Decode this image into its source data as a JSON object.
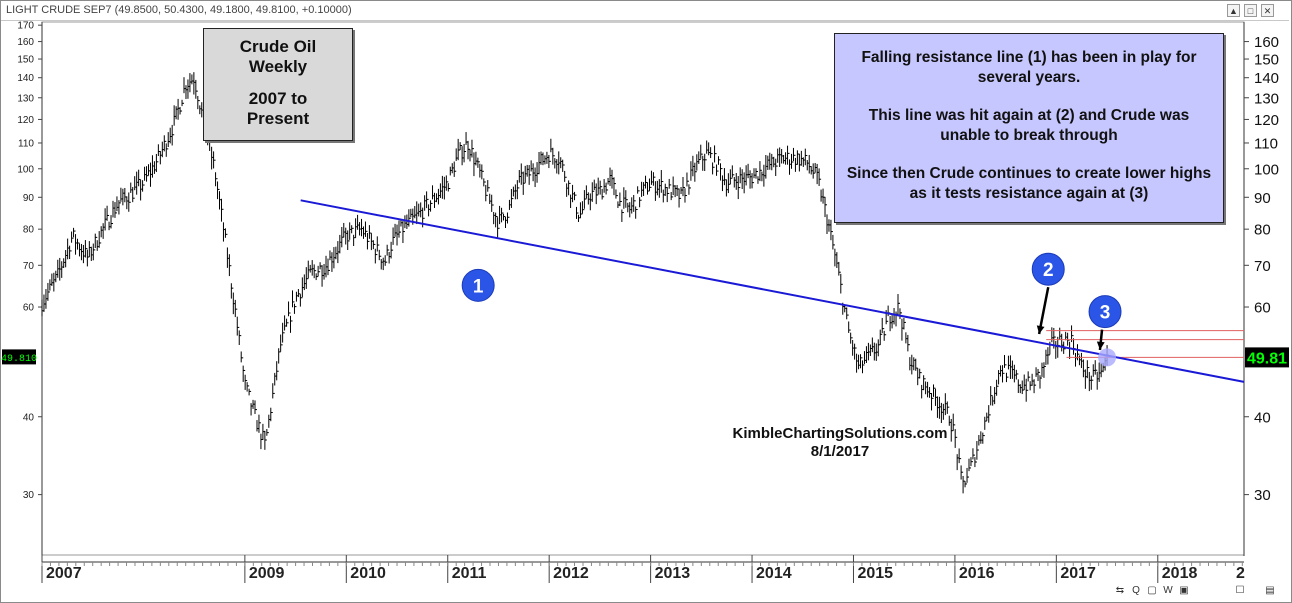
{
  "window": {
    "header": "LIGHT CRUDE SEP7 (49.8500, 50.4300, 49.1800, 49.8100, +0.10000)",
    "buttons": [
      "▲",
      "□",
      "✕"
    ]
  },
  "title_box": {
    "line1": "Crude Oil",
    "line2": "Weekly",
    "line3": "2007 to",
    "line4": "Present"
  },
  "note_box": {
    "p1": "Falling resistance line (1) has been in play for several years.",
    "p2": "This line was hit again at (2) and Crude was unable to break through",
    "p3": "Since then Crude continues to create lower highs as it tests resistance again at (3)"
  },
  "watermark": {
    "site": "KimbleChartingSolutions.com",
    "date": "8/1/2017"
  },
  "markers": [
    {
      "label": "1",
      "date": 2011.3,
      "price": 65
    },
    {
      "label": "2",
      "date": 2016.92,
      "price": 69
    },
    {
      "label": "3",
      "date": 2017.48,
      "price": 59
    }
  ],
  "price_tag": {
    "left": "49.810",
    "right": "49.81"
  },
  "toolbar": {
    "items": [
      "⇆",
      "Q",
      "▢",
      "W",
      "▣",
      "☐",
      "▤"
    ]
  },
  "colors": {
    "resistance_line": "#1a1ad6",
    "marker_fill": "#2a55e6",
    "note_bg": "#c7c7ff",
    "title_bg": "#d9d9d9",
    "horizontal_lines": "#e06060",
    "price_tag_bg": "#000000",
    "price_tag_text": "#00ff00"
  },
  "chart_data": {
    "type": "line",
    "scale": "log",
    "x_ticks": [
      "2007",
      "2009",
      "2010",
      "2011",
      "2012",
      "2013",
      "2014",
      "2015",
      "2016",
      "2017",
      "2018",
      "2"
    ],
    "y_ticks_left": [
      170,
      160,
      150,
      140,
      130,
      120,
      110,
      100,
      90,
      80,
      70,
      60,
      40,
      30
    ],
    "y_ticks_right": [
      160,
      150,
      140,
      130,
      120,
      110,
      100,
      90,
      80,
      70,
      60,
      40,
      30
    ],
    "ylim": [
      24,
      172
    ],
    "xlim": [
      2007.0,
      2018.85
    ],
    "series": [
      {
        "x": [
          2007.0,
          2007.15,
          2007.3,
          2007.45,
          2007.6,
          2007.75,
          2007.9,
          2008.0,
          2008.15,
          2008.3,
          2008.42,
          2008.5,
          2008.6,
          2008.7,
          2008.8,
          2008.9,
          2009.0,
          2009.1,
          2009.2,
          2009.35,
          2009.5,
          2009.65,
          2009.8,
          2009.9,
          2010.0,
          2010.15,
          2010.3,
          2010.38,
          2010.45,
          2010.55,
          2010.7,
          2010.85,
          2011.0,
          2011.1,
          2011.2,
          2011.3,
          2011.4,
          2011.5,
          2011.6,
          2011.7,
          2011.8,
          2011.9,
          2012.0,
          2012.1,
          2012.2,
          2012.3,
          2012.4,
          2012.5,
          2012.6,
          2012.7,
          2012.8,
          2012.9,
          2013.0,
          2013.15,
          2013.3,
          2013.45,
          2013.55,
          2013.65,
          2013.75,
          2013.85,
          2014.0,
          2014.15,
          2014.3,
          2014.45,
          2014.55,
          2014.65,
          2014.75,
          2014.85,
          2014.95,
          2015.05,
          2015.15,
          2015.25,
          2015.35,
          2015.45,
          2015.55,
          2015.65,
          2015.75,
          2015.85,
          2015.95,
          2016.0,
          2016.07,
          2016.15,
          2016.25,
          2016.35,
          2016.45,
          2016.55,
          2016.65,
          2016.75,
          2016.85,
          2016.95,
          2017.05,
          2017.15,
          2017.25,
          2017.35,
          2017.45,
          2017.5
        ],
        "y": [
          61,
          67,
          78,
          72,
          80,
          88,
          92,
          95,
          104,
          118,
          137,
          140,
          118,
          100,
          78,
          60,
          45,
          40,
          36,
          52,
          62,
          68,
          70,
          74,
          78,
          80,
          74,
          71,
          76,
          80,
          84,
          89,
          95,
          105,
          110,
          100,
          90,
          82,
          86,
          95,
          98,
          102,
          106,
          104,
          93,
          84,
          91,
          92,
          96,
          88,
          86,
          91,
          95,
          93,
          90,
          101,
          106,
          102,
          95,
          96,
          97,
          101,
          104,
          104,
          102,
          96,
          82,
          68,
          55,
          48,
          50,
          52,
          58,
          60,
          50,
          46,
          44,
          42,
          40,
          37,
          31,
          33,
          37,
          42,
          48,
          47,
          45,
          45,
          47,
          52,
          53,
          53,
          48,
          46,
          47,
          49.81
        ]
      }
    ],
    "annotations": {
      "resistance_line": {
        "from": {
          "date": 2009.55,
          "price": 89
        },
        "to": {
          "date": 2018.85,
          "price": 45.5
        }
      },
      "horizontal_lines": [
        55,
        53.2,
        49.81
      ]
    }
  }
}
